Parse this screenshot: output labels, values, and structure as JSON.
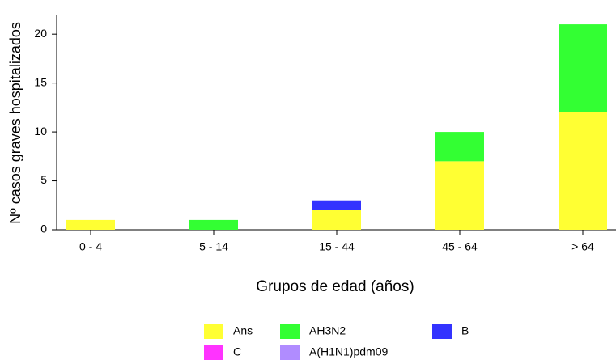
{
  "chart_data": {
    "type": "bar",
    "stacked": true,
    "x_label": "Grupos de edad (años)",
    "y_label": "Nº casos graves hospitalizados",
    "categories": [
      "0 - 4",
      "5 - 14",
      "15 - 44",
      "45 - 64",
      "> 64"
    ],
    "series": [
      {
        "name": "Ans",
        "color": "#ffff33",
        "values": [
          1,
          0,
          2,
          7,
          12
        ]
      },
      {
        "name": "AH3N2",
        "color": "#33ff33",
        "values": [
          0,
          1,
          0,
          3,
          9
        ]
      },
      {
        "name": "B",
        "color": "#3333ff",
        "values": [
          0,
          0,
          1,
          0,
          0
        ]
      },
      {
        "name": "C",
        "color": "#ff33ff",
        "values": [
          0,
          0,
          0,
          0,
          0
        ]
      },
      {
        "name": "A(H1N1)pdm09",
        "color": "#b08cff",
        "values": [
          0,
          0,
          0,
          0,
          0
        ]
      }
    ],
    "ylim": [
      0,
      22
    ],
    "yticks": [
      0,
      5,
      10,
      15,
      20
    ]
  }
}
